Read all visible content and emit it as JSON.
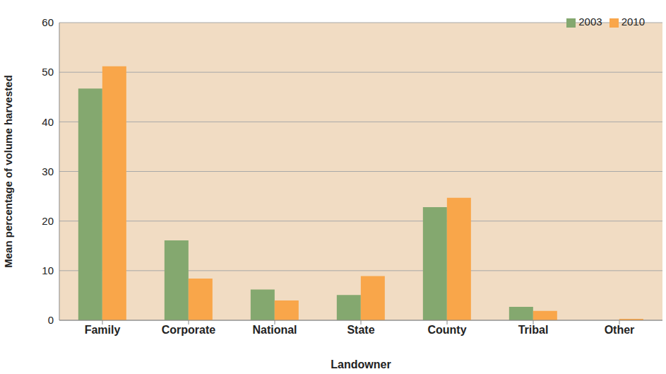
{
  "chart_data": {
    "type": "bar",
    "x_label": "Landowner",
    "y_label": "Mean percentage of volume harvested",
    "categories": [
      "Family",
      "Corporate",
      "National",
      "State",
      "County",
      "Tribal",
      "Other"
    ],
    "series": [
      {
        "name": "2003",
        "color": "#84a86f",
        "values": [
          46.7,
          16.1,
          6.2,
          5.1,
          22.8,
          2.7,
          0
        ]
      },
      {
        "name": "2010",
        "color": "#f9a64a",
        "values": [
          51.2,
          8.4,
          4.0,
          8.9,
          24.7,
          1.9,
          0.3
        ]
      }
    ],
    "ylim": [
      0,
      60
    ],
    "yticks": [
      0,
      10,
      20,
      30,
      40,
      50,
      60
    ],
    "grid": true,
    "legend": "upper right"
  }
}
